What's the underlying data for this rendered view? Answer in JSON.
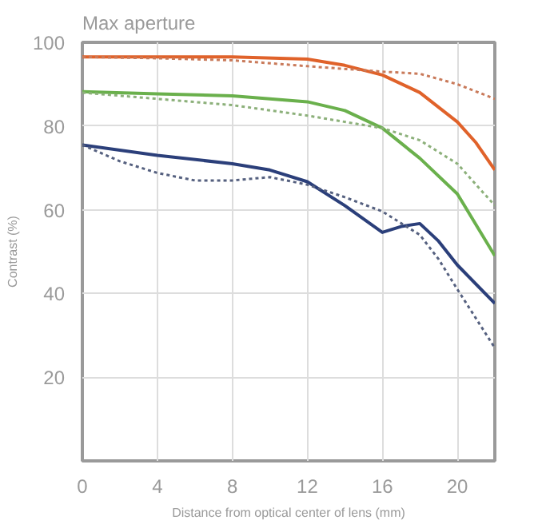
{
  "chart_data": {
    "type": "line",
    "title": "Max aperture",
    "xlabel": "Distance from optical center of lens (mm)",
    "ylabel": "Contrast (%)",
    "xlim": [
      0,
      22
    ],
    "ylim": [
      0,
      100
    ],
    "xticks": [
      0,
      4,
      8,
      12,
      16,
      20
    ],
    "yticks": [
      20,
      40,
      60,
      80,
      100
    ],
    "grid": true,
    "marker": "none",
    "series": [
      {
        "color": "#e0622a",
        "line_style": "solid",
        "x": [
          0,
          4,
          8,
          12,
          14,
          16,
          18,
          20,
          21,
          22
        ],
        "values": [
          96.5,
          96.5,
          96.5,
          96,
          94.5,
          92.2,
          88,
          81,
          76,
          69.5
        ]
      },
      {
        "color": "#c97a5a",
        "line_style": "dotted",
        "x": [
          0,
          4,
          8,
          12,
          16,
          18,
          20,
          22
        ],
        "values": [
          96.5,
          96.2,
          95.7,
          94.3,
          93,
          92.5,
          90,
          86.5
        ]
      },
      {
        "color": "#6ab04c",
        "line_style": "solid",
        "x": [
          0,
          4,
          8,
          12,
          14,
          16,
          18,
          20,
          22
        ],
        "values": [
          88.2,
          87.7,
          87.2,
          85.8,
          83.7,
          79.5,
          72.3,
          63.8,
          49
        ]
      },
      {
        "color": "#8cb07a",
        "line_style": "dotted",
        "x": [
          0,
          4,
          8,
          12,
          16,
          18,
          20,
          22
        ],
        "values": [
          88,
          86.5,
          85,
          82.5,
          79.5,
          76.6,
          71,
          61
        ]
      },
      {
        "color": "#2b3f7a",
        "line_style": "solid",
        "x": [
          0,
          4,
          8,
          10,
          12,
          14,
          16,
          17,
          18,
          19,
          20,
          22
        ],
        "values": [
          75.5,
          73,
          71,
          69.5,
          66.7,
          61,
          54.6,
          56,
          56.7,
          52.5,
          46.8,
          37.6
        ]
      },
      {
        "color": "#55607f",
        "line_style": "dotted",
        "x": [
          0,
          2,
          4,
          6,
          8,
          10,
          12,
          14,
          16,
          18,
          19,
          20,
          22
        ],
        "values": [
          75.5,
          71.6,
          68.8,
          67,
          67,
          67.8,
          66,
          63,
          59.6,
          54,
          48.2,
          41,
          27
        ]
      }
    ]
  }
}
